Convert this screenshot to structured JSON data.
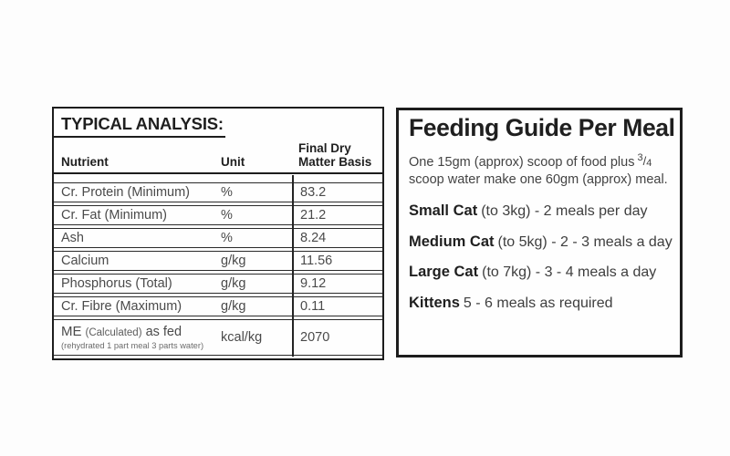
{
  "analysis": {
    "title": "TYPICAL ANALYSIS:",
    "columns": {
      "nutrient": "Nutrient",
      "unit": "Unit",
      "basis_line1": "Final Dry",
      "basis_line2": "Matter Basis"
    },
    "rows": [
      {
        "nutrient": "Cr. Protein (Minimum)",
        "unit": "%",
        "value": "83.2"
      },
      {
        "nutrient": "Cr. Fat (Minimum)",
        "unit": "%",
        "value": "21.2"
      },
      {
        "nutrient": "Ash",
        "unit": "%",
        "value": "8.24"
      },
      {
        "nutrient": "Calcium",
        "unit": "g/kg",
        "value": "11.56"
      },
      {
        "nutrient": "Phosphorus (Total)",
        "unit": "g/kg",
        "value": "9.12"
      },
      {
        "nutrient": "Cr. Fibre (Maximum)",
        "unit": "g/kg",
        "value": "0.11"
      }
    ],
    "me_row": {
      "name_main": "ME",
      "name_paren": "(Calculated)",
      "name_suffix": "as fed",
      "name_note": "(rehydrated 1 part meal 3 parts water)",
      "unit": "kcal/kg",
      "value": "2070"
    }
  },
  "guide": {
    "title": "Feeding Guide Per Meal",
    "intro_before": "One 15gm (approx) scoop of food plus",
    "fraction": {
      "num": "3",
      "slash": "/",
      "den": "4"
    },
    "intro_after": "scoop water make one 60gm (approx) meal.",
    "items": [
      {
        "label": "Small Cat",
        "detail": "(to 3kg) - 2 meals per day"
      },
      {
        "label": "Medium Cat",
        "detail": "(to 5kg) - 2 - 3 meals a day"
      },
      {
        "label": "Large Cat",
        "detail": "(to 7kg) - 3 - 4 meals a day"
      },
      {
        "label": "Kittens",
        "detail": "5 - 6 meals as required"
      }
    ]
  },
  "colors": {
    "border": "#1d1d1d",
    "heading_text": "#1f1f1f",
    "body_text": "#4a4a4a",
    "background": "#fdfdfd"
  }
}
